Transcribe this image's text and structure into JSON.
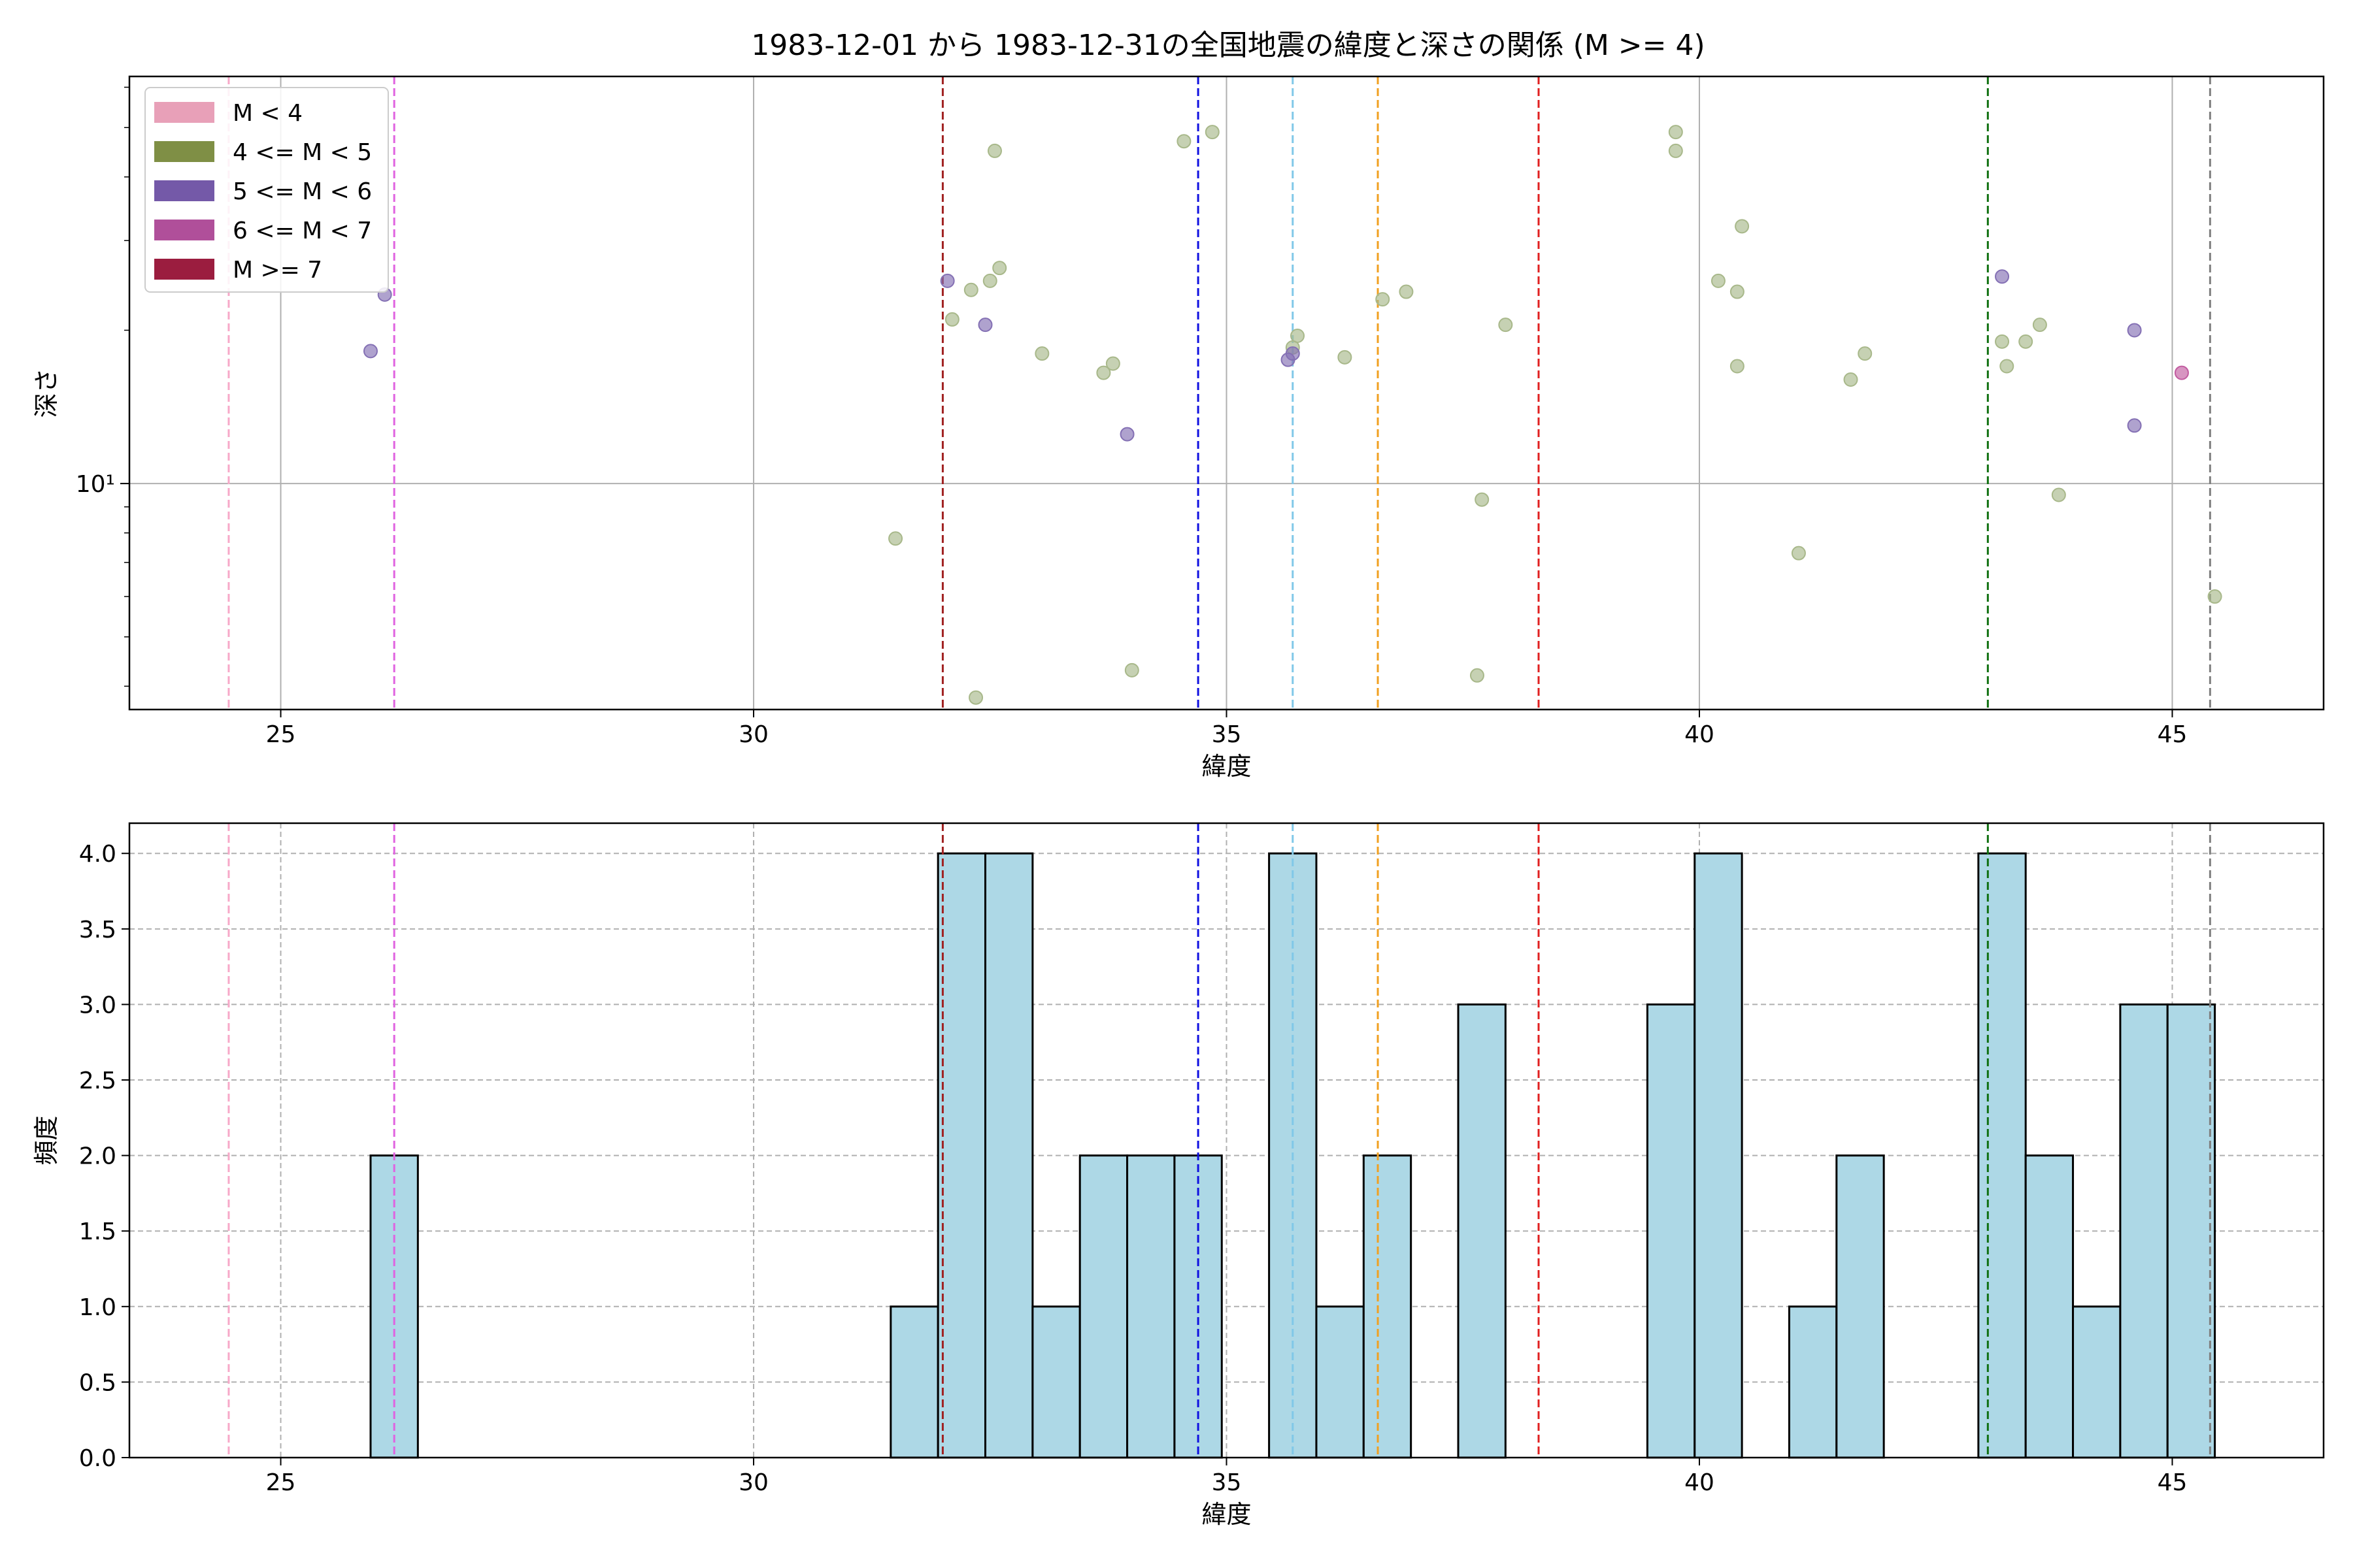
{
  "title": "1983-12-01 から 1983-12-31の全国地震の緯度と深さの関係 (M >= 4)",
  "chart_data": [
    {
      "type": "scatter",
      "title": "1983-12-01 から 1983-12-31の全国地震の緯度と深さの関係 (M >= 4)",
      "xlabel": "緯度",
      "ylabel": "深さ",
      "yscale": "log",
      "xlim": [
        23.4,
        46.6
      ],
      "ylim": [
        3.6,
        63
      ],
      "xticks": [
        25,
        30,
        35,
        40,
        45
      ],
      "yticks": [
        10
      ],
      "ytick_labels": [
        "10¹"
      ],
      "grid": true,
      "legend_position": "top-left",
      "legend": [
        {
          "label": "M < 4",
          "color": "#e8a0b8"
        },
        {
          "label": "4 <= M < 5",
          "color": "#7f8f45"
        },
        {
          "label": "5 <= M < 6",
          "color": "#7459a8"
        },
        {
          "label": "6 <= M < 7",
          "color": "#b04f9a"
        },
        {
          "label": "M >= 7",
          "color": "#9b1d3f"
        }
      ],
      "reference_lines": [
        {
          "x": 24.45,
          "color": "#f7a8c8"
        },
        {
          "x": 26.2,
          "color": "#e063e0"
        },
        {
          "x": 32.0,
          "color": "#a02020"
        },
        {
          "x": 34.7,
          "color": "#1010e0"
        },
        {
          "x": 35.7,
          "color": "#80c8e8"
        },
        {
          "x": 36.6,
          "color": "#f0a020"
        },
        {
          "x": 38.3,
          "color": "#e02020"
        },
        {
          "x": 43.05,
          "color": "#107010"
        },
        {
          "x": 45.4,
          "color": "#808080"
        }
      ],
      "series": [
        {
          "name": "4 <= M < 5",
          "color": "#a8b88a",
          "points": [
            [
              31.5,
              7.8
            ],
            [
              32.1,
              21
            ],
            [
              32.3,
              24
            ],
            [
              32.35,
              3.8
            ],
            [
              32.5,
              25
            ],
            [
              32.55,
              45
            ],
            [
              32.6,
              26.5
            ],
            [
              33.05,
              18
            ],
            [
              33.7,
              16.5
            ],
            [
              33.8,
              17.2
            ],
            [
              34.0,
              4.3
            ],
            [
              34.55,
              47
            ],
            [
              34.85,
              49
            ],
            [
              35.75,
              19.5
            ],
            [
              35.7,
              18.5
            ],
            [
              36.25,
              17.7
            ],
            [
              36.65,
              23
            ],
            [
              36.9,
              23.8
            ],
            [
              37.65,
              4.2
            ],
            [
              37.7,
              9.3
            ],
            [
              37.95,
              20.5
            ],
            [
              39.75,
              49
            ],
            [
              39.75,
              45
            ],
            [
              40.2,
              25
            ],
            [
              40.4,
              23.8
            ],
            [
              40.4,
              17
            ],
            [
              40.45,
              32
            ],
            [
              41.05,
              7.3
            ],
            [
              41.6,
              16
            ],
            [
              41.75,
              18
            ],
            [
              43.2,
              19
            ],
            [
              43.25,
              17
            ],
            [
              43.45,
              19
            ],
            [
              43.6,
              20.5
            ],
            [
              43.8,
              9.5
            ],
            [
              45.45,
              6
            ]
          ]
        },
        {
          "name": "5 <= M < 6",
          "color": "#8470b4",
          "points": [
            [
              25.95,
              18.2
            ],
            [
              26.1,
              23.5
            ],
            [
              32.05,
              25
            ],
            [
              32.45,
              20.5
            ],
            [
              33.95,
              12.5
            ],
            [
              35.7,
              18
            ],
            [
              35.65,
              17.5
            ],
            [
              43.2,
              25.5
            ],
            [
              44.6,
              20
            ],
            [
              44.6,
              13
            ]
          ]
        },
        {
          "name": "6 <= M < 7",
          "color": "#c25ca0",
          "points": [
            [
              45.1,
              16.5
            ]
          ]
        }
      ]
    },
    {
      "type": "bar",
      "xlabel": "緯度",
      "ylabel": "頻度",
      "xlim": [
        23.4,
        46.6
      ],
      "ylim": [
        0,
        4.2
      ],
      "xticks": [
        25,
        30,
        35,
        40,
        45
      ],
      "yticks": [
        0.0,
        0.5,
        1.0,
        1.5,
        2.0,
        2.5,
        3.0,
        3.5,
        4.0
      ],
      "ytick_labels": [
        "0.0",
        "0.5",
        "1.0",
        "1.5",
        "2.0",
        "2.5",
        "3.0",
        "3.5",
        "4.0"
      ],
      "grid": true,
      "bar_color": "#add8e6",
      "reference_lines": [
        {
          "x": 24.45,
          "color": "#f7a8c8"
        },
        {
          "x": 26.2,
          "color": "#e063e0"
        },
        {
          "x": 32.0,
          "color": "#a02020"
        },
        {
          "x": 34.7,
          "color": "#1010e0"
        },
        {
          "x": 35.7,
          "color": "#80c8e8"
        },
        {
          "x": 36.6,
          "color": "#f0a020"
        },
        {
          "x": 38.3,
          "color": "#e02020"
        },
        {
          "x": 43.05,
          "color": "#107010"
        },
        {
          "x": 45.4,
          "color": "#808080"
        }
      ],
      "bin_edges_start": 25.95,
      "bin_width": 0.5,
      "bins": [
        [
          25.95,
          26.45,
          2
        ],
        [
          31.45,
          31.95,
          1
        ],
        [
          31.95,
          32.45,
          4
        ],
        [
          32.45,
          32.95,
          4
        ],
        [
          32.95,
          33.45,
          1
        ],
        [
          33.45,
          33.95,
          2
        ],
        [
          33.95,
          34.45,
          2
        ],
        [
          34.45,
          34.95,
          2
        ],
        [
          35.45,
          35.95,
          4
        ],
        [
          35.95,
          36.45,
          1
        ],
        [
          36.45,
          36.95,
          2
        ],
        [
          37.45,
          37.95,
          3
        ],
        [
          39.45,
          39.95,
          3
        ],
        [
          39.95,
          40.45,
          4
        ],
        [
          40.95,
          41.45,
          1
        ],
        [
          41.45,
          41.95,
          2
        ],
        [
          42.95,
          43.45,
          4
        ],
        [
          43.45,
          43.95,
          2
        ],
        [
          43.95,
          44.45,
          1
        ],
        [
          44.45,
          44.95,
          3
        ],
        [
          44.95,
          45.45,
          3
        ]
      ]
    }
  ]
}
